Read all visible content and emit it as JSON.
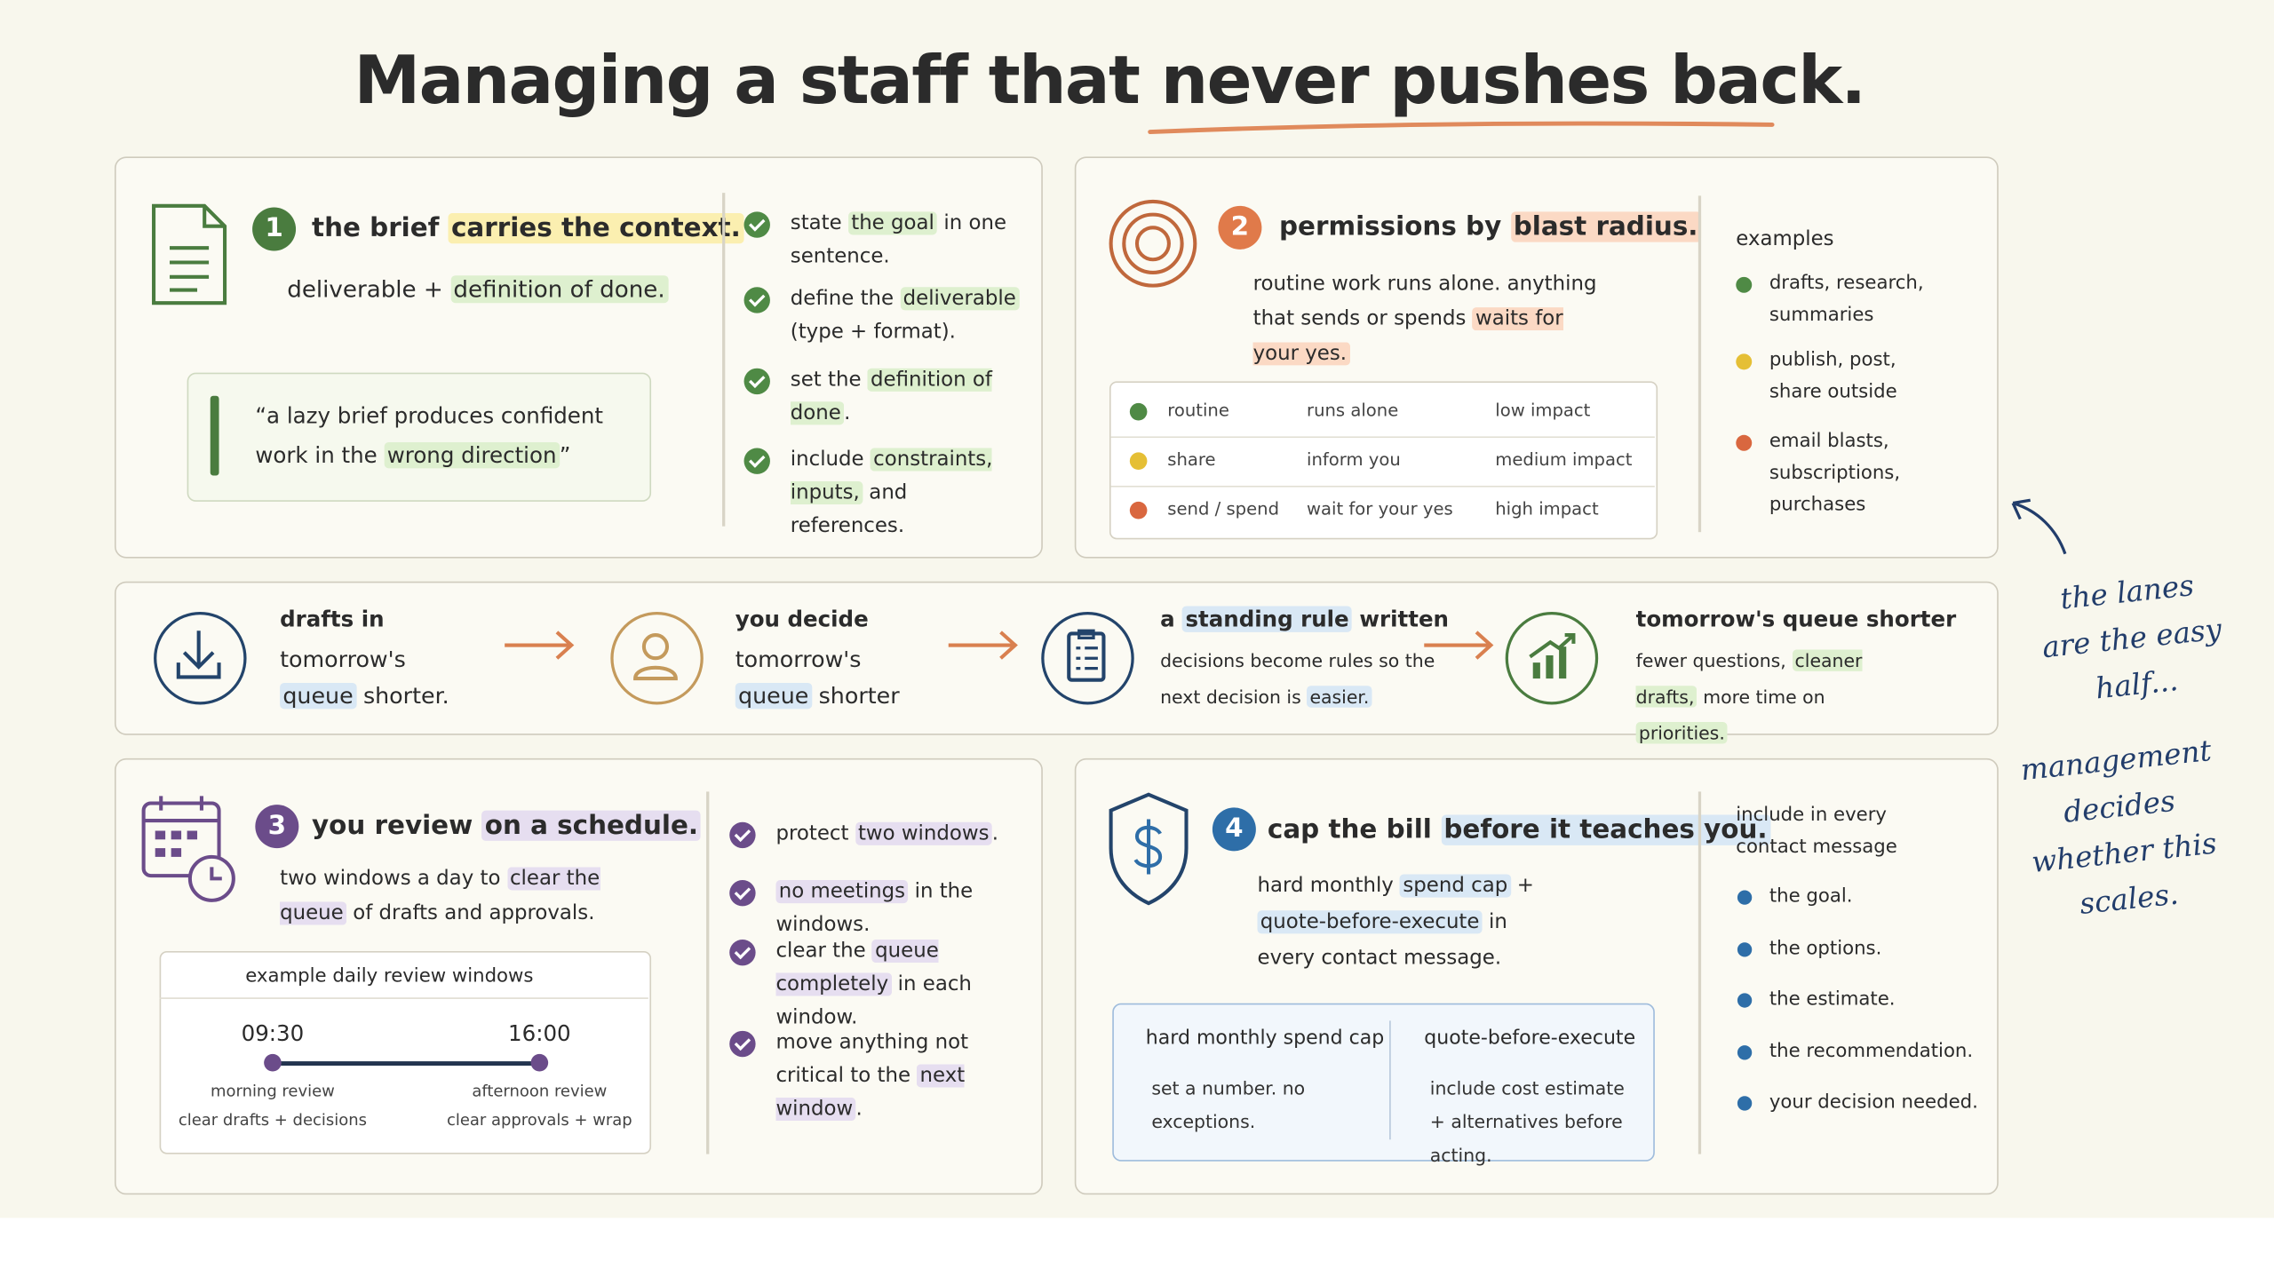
{
  "title": [
    "Managing a staff that ",
    "never pushes back."
  ],
  "panel1": {
    "number": "1",
    "heading": [
      "the brief ",
      "carries the context."
    ],
    "sub": [
      "deliverable + ",
      "definition of done."
    ],
    "quote": [
      "“a lazy brief produces confident work in the ",
      "wrong direction",
      "”"
    ],
    "checklist": [
      [
        "state ",
        "the goal",
        " in one sentence."
      ],
      [
        "define the ",
        "deliverable",
        " (type + format)."
      ],
      [
        "set the ",
        "definition of done",
        "."
      ],
      [
        "include ",
        "constraints, inputs,",
        " and references."
      ]
    ]
  },
  "panel2": {
    "number": "2",
    "heading": [
      "permissions by ",
      "blast radius."
    ],
    "sub": [
      "routine work runs alone. anything that sends or spends ",
      "waits for your yes."
    ],
    "table": [
      [
        "routine",
        "runs alone",
        "low impact"
      ],
      [
        "share",
        "inform you",
        "medium impact"
      ],
      [
        "send / spend",
        "wait for your yes",
        "high impact"
      ]
    ],
    "examples_heading": "examples",
    "examples": [
      "drafts, research, summaries",
      "publish, post, share outside",
      "email blasts, subscriptions, purchases"
    ]
  },
  "flow": [
    {
      "heading": [
        "drafts in"
      ],
      "body": [
        "tomorrow's ",
        "queue",
        " shorter."
      ]
    },
    {
      "heading": [
        "you decide"
      ],
      "body": [
        "tomorrow's ",
        "queue",
        " shorter"
      ]
    },
    {
      "heading": [
        "a ",
        "standing rule",
        " written"
      ],
      "body": [
        "decisions become rules so the next decision is ",
        "easier."
      ]
    },
    {
      "heading": [
        "tomorrow's queue shorter"
      ],
      "body": [
        "fewer questions, ",
        "cleaner drafts,",
        " more time on ",
        "priorities."
      ]
    }
  ],
  "panel3": {
    "number": "3",
    "heading": [
      "you review ",
      "on a schedule."
    ],
    "sub": [
      "two windows a day to ",
      "clear the queue",
      " of drafts and approvals."
    ],
    "timeline": {
      "title": "example daily review windows",
      "windows": [
        {
          "time": "09:30",
          "name": "morning review",
          "detail": "clear drafts + decisions"
        },
        {
          "time": "16:00",
          "name": "afternoon review",
          "detail": "clear approvals + wrap"
        }
      ]
    },
    "checklist": [
      [
        "protect ",
        "two windows",
        "."
      ],
      [
        "",
        "no meetings",
        " in the windows."
      ],
      [
        "clear the ",
        "queue completely",
        " in each window."
      ],
      [
        "move anything not critical to the ",
        "next window",
        "."
      ]
    ]
  },
  "panel4": {
    "number": "4",
    "heading": [
      "cap the bill ",
      "before it teaches you."
    ],
    "sub": [
      "hard monthly ",
      "spend cap",
      " + ",
      "quote-before-execute",
      " in every contact message."
    ],
    "boxes": [
      {
        "title": "hard monthly spend cap",
        "body": "set a number. no exceptions."
      },
      {
        "title": "quote-before-execute",
        "body": "include cost estimate + alternatives before acting."
      }
    ],
    "include_heading": "include in every contact message",
    "include": [
      "the goal.",
      "the options.",
      "the estimate.",
      "the recommendation.",
      "your decision needed."
    ]
  },
  "note": [
    "the lanes are the easy half...",
    "management decides whether this scales."
  ]
}
